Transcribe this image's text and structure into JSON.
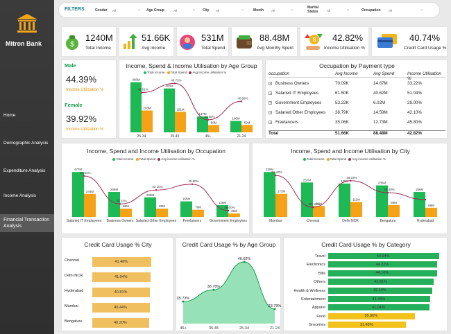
{
  "sidebar": {
    "brand": "Mitron Bank",
    "nav": [
      "Home",
      "Demographic Analysis",
      "Expenditure Analysis",
      "Income Analysis"
    ],
    "active": "Financial Transaction Analysis"
  },
  "filters": {
    "label": "FILTERS",
    "items": [
      {
        "label": "Gender",
        "value": "All"
      },
      {
        "label": "Age Group",
        "value": "All"
      },
      {
        "label": "City",
        "value": "All"
      },
      {
        "label": "Month",
        "value": "All"
      },
      {
        "label": "Marital Status",
        "value": "All"
      },
      {
        "label": "Occupation",
        "value": "All"
      }
    ]
  },
  "kpis": [
    {
      "value": "1240M",
      "label": "Total Income"
    },
    {
      "value": "51.66K",
      "label": "Avg Income"
    },
    {
      "value": "531M",
      "label": "Total Spend"
    },
    {
      "value": "88.48M",
      "label": "Avg Monthy Spent"
    },
    {
      "value": "42.82%",
      "label": "Income Utilisation %"
    },
    {
      "value": "40.74%",
      "label": "Credit Card Usage %"
    }
  ],
  "gender": {
    "male_label": "Male",
    "male_value": "44.39%",
    "female_label": "Female",
    "female_value": "39.92%",
    "metric": "Income Utilization %"
  },
  "colors": {
    "income": "#1db954",
    "spend": "#f5a216",
    "line": "#9e2b55",
    "hbar": "#f0c060",
    "green_bar": "#24b05a",
    "yellow_bar": "#f2c21a"
  },
  "age_chart": {
    "type": "bar",
    "title": "Income, Spend & Income Utilisation by Age Group",
    "legend": [
      "Total Income",
      "Total Spend",
      "Avg Income utilisation %"
    ],
    "categories": [
      "25-34",
      "35-45",
      "45+",
      "21-24"
    ],
    "series": [
      {
        "name": "Total Income",
        "values": [
          466,
          408,
          147,
          106
        ],
        "labels": [
          "466M",
          "408M",
          "147M",
          "106M"
        ]
      },
      {
        "name": "Total Spend",
        "values": [
          203,
          191,
          68,
          69
        ],
        "labels": [
          "203M",
          "191M",
          "68M",
          "69M"
        ]
      },
      {
        "name": "Avg Income utilisation %",
        "values": [
          43.61,
          46.72,
          34.3,
          40.59
        ],
        "labels": [
          "43.61%",
          "46.72%",
          "34.30%",
          "40.59%"
        ]
      }
    ]
  },
  "occupation_table": {
    "title": "Occupation by Payment type",
    "columns": [
      "occupation",
      "Avg Income",
      "Avg Spend",
      "Income Utilisation %"
    ],
    "rows": [
      [
        "Business Owners",
        "70.09K",
        "14.67M",
        "33.22%"
      ],
      [
        "Salaried IT Employees",
        "61.50K",
        "40.62M",
        "51.04%"
      ],
      [
        "Government Employees",
        "53.22K",
        "6.02M",
        "29.00%"
      ],
      [
        "Salaried Other Employees",
        "38.79K",
        "14.59M",
        "42.10%"
      ],
      [
        "Freelancers",
        "35.06K",
        "12.73M",
        "45.80%"
      ]
    ],
    "total": [
      "Total",
      "51.66K",
      "88.48M",
      "42.82%"
    ]
  },
  "occ_chart": {
    "type": "bar",
    "title": "Income, Spend and Income Utilisation by Occupation",
    "legend": [
      "Total Income",
      "Total Spend",
      "Avg income utilisation %"
    ],
    "categories": [
      "Salaried IT Employees",
      "Business Owners",
      "Salaried Other Employees",
      "Freelancers",
      "Government Employees"
    ],
    "series": [
      {
        "name": "Total Income",
        "values": [
          477,
          265,
          208,
          165,
          125
        ],
        "labels": [
          "477M",
          "265M",
          "208M",
          "165M",
          "125M"
        ]
      },
      {
        "name": "Total Spend",
        "values": [
          244,
          88,
          88,
          76,
          36
        ],
        "labels": [
          "244M",
          "88M",
          "88M",
          "76M",
          "36M"
        ]
      },
      {
        "name": "Avg income utilisation %",
        "values": [
          51.04,
          33.22,
          42.1,
          45.8,
          29.0
        ],
        "labels": [
          "51.04%",
          "33.22%",
          "42.10%",
          "45.80%",
          "29.00%"
        ]
      }
    ]
  },
  "city_chart": {
    "type": "bar",
    "title": "Income, Spend and Income Utilisation by City",
    "legend": [
      "Total Income",
      "Total Spend",
      "Avg income utilisation %"
    ],
    "categories": [
      "Mumbai",
      "Chennai",
      "Delhi NCR",
      "Bengaluru",
      "Hyderabad"
    ],
    "series": [
      {
        "name": "Total Income",
        "values": [
          335,
          257,
          249,
          235,
          186
        ],
        "labels": [
          "335M",
          "257M",
          "249M",
          "235M",
          "186M"
        ]
      },
      {
        "name": "Total Spend",
        "values": [
          172,
          81,
          111,
          88,
          68
        ],
        "labels": [
          "172M",
          "81M",
          "111M",
          "88M",
          "68M"
        ]
      },
      {
        "name": "Avg income utilisation %",
        "values": [
          51.43,
          31.1,
          48.03,
          40.4,
          36.0
        ],
        "labels": [
          "51.43%",
          "31.10%",
          "48.03%",
          "40.40%",
          ""
        ]
      }
    ]
  },
  "cc_city": {
    "type": "bar",
    "title": "Credit Card Usage % City",
    "categories": [
      "Chennai",
      "Delhi NCR",
      "Hyderabad",
      "Mumbai",
      "Bengaluru"
    ],
    "values": [
      41.48,
      41.04,
      40.81,
      40.44,
      40.2
    ],
    "labels": [
      "41.48%",
      "41.04%",
      "40.81%",
      "40.44%",
      "40.20%"
    ]
  },
  "cc_age": {
    "type": "area",
    "title": "Credit Card Usage % by Age Group",
    "categories": [
      "45+",
      "35-45",
      "25-34",
      "21-24"
    ],
    "values": [
      35.73,
      38.78,
      46.02,
      33.79
    ],
    "labels": [
      "35.73%",
      "38.78%",
      "46.02%",
      "33.79%"
    ]
  },
  "cc_category": {
    "type": "bar",
    "title": "Credit Card Usage % by Category",
    "categories": [
      "Travel",
      "Electronics",
      "Bills",
      "Others",
      "Health & Wellness",
      "Entertainment",
      "Apparel",
      "Food",
      "Groceries"
    ],
    "values": [
      44.94,
      44.22,
      44.16,
      42.81,
      42.19,
      41.43,
      41.04,
      35.06,
      31.48
    ],
    "labels": [
      "44.94%",
      "44.22%",
      "44.16%",
      "42.81%",
      "42.19%",
      "41.43%",
      "41.04%",
      "35.06%",
      "31.48%"
    ]
  }
}
